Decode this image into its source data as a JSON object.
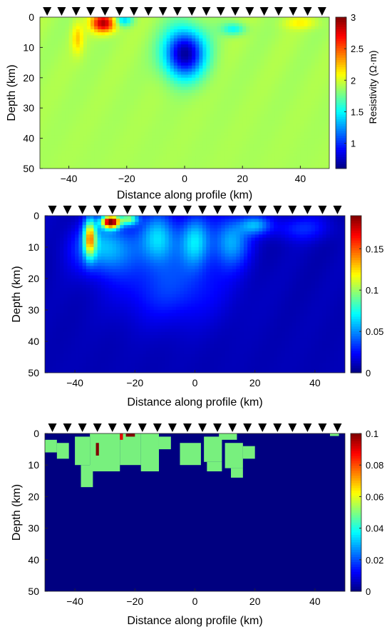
{
  "chart_data": [
    {
      "type": "heatmap",
      "title": "",
      "xlabel": "Distance along profile (km)",
      "ylabel": "Depth (km)",
      "xlim": [
        -50,
        50
      ],
      "ylim": [
        50,
        0
      ],
      "x_ticks": [
        "-40",
        "-20",
        "0",
        "20",
        "40"
      ],
      "y_ticks": [
        "0",
        "10",
        "20",
        "30",
        "40",
        "50"
      ],
      "colormap": "jet",
      "colorbar": {
        "label": "Resistivity (Ω·m)",
        "range": [
          0.6,
          3.0
        ],
        "ticks": [
          "1",
          "1.5",
          "2",
          "2.5",
          "3"
        ]
      },
      "background_value": 1.9,
      "stations_km": [
        -47.5,
        -42.5,
        -37.5,
        -32.5,
        -27.5,
        -22.5,
        -17.5,
        -12.5,
        -7.5,
        -2.5,
        2.5,
        7.5,
        12.5,
        17.5,
        22.5,
        27.5,
        32.5,
        37.5,
        42.5,
        47.5
      ],
      "features": [
        {
          "x": 0,
          "depth": 12,
          "value": 0.65,
          "radius_x": 7,
          "radius_z": 8,
          "description_value_units": "Ω·m"
        },
        {
          "x": -28,
          "depth": 2,
          "value": 2.9,
          "radius_x": 4,
          "radius_z": 3
        },
        {
          "x": -37,
          "depth": 7,
          "value": 2.2,
          "radius_x": 2,
          "radius_z": 5
        },
        {
          "x": -21,
          "depth": 1,
          "value": 1.4,
          "radius_x": 3,
          "radius_z": 2
        },
        {
          "x": 17,
          "depth": 4,
          "value": 1.5,
          "radius_x": 4,
          "radius_z": 2
        },
        {
          "x": 40,
          "depth": 2,
          "value": 2.1,
          "radius_x": 6,
          "radius_z": 2
        }
      ]
    },
    {
      "type": "heatmap",
      "title": "",
      "xlabel": "Distance along profile (km)",
      "ylabel": "Depth (km)",
      "xlim": [
        -50,
        50
      ],
      "ylim": [
        50,
        0
      ],
      "x_ticks": [
        "-40",
        "-20",
        "0",
        "20",
        "40"
      ],
      "y_ticks": [
        "0",
        "10",
        "20",
        "30",
        "40",
        "50"
      ],
      "colormap": "jet",
      "colorbar": {
        "label": "",
        "range": [
          0,
          0.19
        ],
        "ticks": [
          "0",
          "0.05",
          "0.1",
          "0.15"
        ]
      },
      "background_value": 0.01,
      "stations_km": [
        -47.5,
        -42.5,
        -37.5,
        -32.5,
        -27.5,
        -22.5,
        -17.5,
        -12.5,
        -7.5,
        -2.5,
        2.5,
        7.5,
        12.5,
        17.5,
        22.5,
        27.5,
        32.5,
        37.5,
        42.5,
        47.5
      ],
      "features": [
        {
          "x": -28,
          "depth": 2,
          "value": 0.19,
          "radius_x": 3,
          "radius_z": 2
        },
        {
          "x": -35,
          "depth": 7,
          "value": 0.11,
          "radius_x": 2,
          "radius_z": 6
        },
        {
          "x": -22,
          "depth": 1,
          "value": 0.09,
          "radius_x": 3,
          "radius_z": 2
        },
        {
          "x": -30,
          "depth": 10,
          "value": 0.06,
          "radius_x": 10,
          "radius_z": 8
        },
        {
          "x": -12,
          "depth": 7,
          "value": 0.06,
          "radius_x": 6,
          "radius_z": 8
        },
        {
          "x": 0,
          "depth": 8,
          "value": 0.06,
          "radius_x": 5,
          "radius_z": 8
        },
        {
          "x": 12,
          "depth": 8,
          "value": 0.055,
          "radius_x": 6,
          "radius_z": 8
        },
        {
          "x": 20,
          "depth": 3,
          "value": 0.05,
          "radius_x": 5,
          "radius_z": 3
        },
        {
          "x": -8,
          "depth": 22,
          "value": 0.035,
          "radius_x": 18,
          "radius_z": 12
        },
        {
          "x": 35,
          "depth": 4,
          "value": 0.03,
          "radius_x": 10,
          "radius_z": 4
        }
      ]
    },
    {
      "type": "heatmap",
      "title": "",
      "xlabel": "Distance along profile (km)",
      "ylabel": "Depth (km)",
      "xlim": [
        -50,
        50
      ],
      "ylim": [
        50,
        0
      ],
      "x_ticks": [
        "-40",
        "-20",
        "0",
        "20",
        "40"
      ],
      "y_ticks": [
        "0",
        "10",
        "20",
        "30",
        "40",
        "50"
      ],
      "colormap": "jet",
      "colorbar": {
        "label": "",
        "range": [
          0,
          0.1
        ],
        "ticks": [
          "0",
          "0.02",
          "0.04",
          "0.06",
          "0.08",
          "0.1"
        ]
      },
      "background_value": 0,
      "stations_km": [
        -47.5,
        -42.5,
        -37.5,
        -32.5,
        -27.5,
        -22.5,
        -17.5,
        -12.5,
        -7.5,
        -2.5,
        2.5,
        7.5,
        12.5,
        17.5,
        22.5,
        27.5,
        32.5,
        37.5,
        42.5,
        47.5
      ],
      "patch_value": 0.05,
      "patches": [
        {
          "x": [
            -50,
            -46
          ],
          "depth": [
            2,
            6
          ]
        },
        {
          "x": [
            -46,
            -42
          ],
          "depth": [
            3,
            8
          ]
        },
        {
          "x": [
            -40,
            -35
          ],
          "depth": [
            1,
            10
          ]
        },
        {
          "x": [
            -38,
            -34
          ],
          "depth": [
            10,
            17
          ]
        },
        {
          "x": [
            -35,
            -25
          ],
          "depth": [
            0,
            12
          ]
        },
        {
          "x": [
            -25,
            -18
          ],
          "depth": [
            0,
            10
          ]
        },
        {
          "x": [
            -18,
            -12
          ],
          "depth": [
            0,
            12
          ]
        },
        {
          "x": [
            -12,
            -8
          ],
          "depth": [
            1,
            5
          ]
        },
        {
          "x": [
            -5,
            2
          ],
          "depth": [
            3,
            10
          ]
        },
        {
          "x": 3,
          "depth": [
            1,
            9
          ],
          "x2": 9
        },
        {
          "x": [
            4,
            9
          ],
          "depth": [
            9,
            12
          ]
        },
        {
          "x": [
            10,
            16
          ],
          "depth": [
            3,
            11
          ]
        },
        {
          "x": [
            16,
            20
          ],
          "depth": [
            4,
            8
          ]
        },
        {
          "x": [
            12,
            16
          ],
          "depth": [
            11,
            14
          ]
        },
        {
          "x": [
            8,
            14
          ],
          "depth": [
            0,
            2
          ]
        }
      ],
      "red_cells": [
        {
          "x": [
            -23,
            -20
          ],
          "depth": [
            0,
            1
          ],
          "value": 0.1
        },
        {
          "x": [
            -33,
            -32
          ],
          "depth": [
            3,
            7
          ],
          "value": 0.1
        },
        {
          "x": [
            -25,
            -24
          ],
          "depth": [
            0,
            2
          ],
          "value": 0.09
        }
      ],
      "edge_mark": {
        "x": [
          45,
          48
        ],
        "depth": [
          0,
          0.8
        ]
      }
    }
  ]
}
